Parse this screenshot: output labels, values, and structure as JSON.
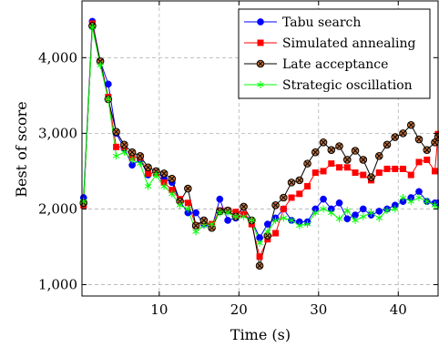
{
  "chart_data": {
    "type": "line",
    "xlabel": "Time (s)",
    "ylabel": "Best of score",
    "xlim": [
      0.3,
      45
    ],
    "ylim": [
      850,
      4750
    ],
    "xticks": [
      10,
      20,
      30,
      40
    ],
    "xtick_labels": [
      "10",
      "20",
      "30",
      "40"
    ],
    "yticks": [
      1000,
      2000,
      3000,
      4000
    ],
    "ytick_labels": [
      "1,000",
      "2,000",
      "3,000",
      "4,000"
    ],
    "grid": true,
    "legend_position": "top-right",
    "series": [
      {
        "name": "Tabu search",
        "color": "#0000ff",
        "marker": "circle",
        "x": [
          0.5,
          1.6,
          2.6,
          3.6,
          4.6,
          5.6,
          6.6,
          7.6,
          8.6,
          9.6,
          10.6,
          11.6,
          12.6,
          13.6,
          14.6,
          15.6,
          16.6,
          17.6,
          18.6,
          19.6,
          20.6,
          21.6,
          22.6,
          23.6,
          24.6,
          25.6,
          26.6,
          27.6,
          28.6,
          29.6,
          30.6,
          31.6,
          32.6,
          33.6,
          34.6,
          35.6,
          36.6,
          37.6,
          38.6,
          39.6,
          40.6,
          41.6,
          42.6,
          43.6,
          44.6,
          45
        ],
        "y": [
          2150,
          4480,
          3950,
          3650,
          3000,
          2800,
          2580,
          2650,
          2450,
          2500,
          2400,
          2350,
          2100,
          1950,
          1950,
          1800,
          1750,
          2130,
          1850,
          1880,
          1930,
          1850,
          1620,
          1800,
          1880,
          2000,
          1850,
          1830,
          1830,
          2000,
          2130,
          2000,
          2080,
          1870,
          1920,
          2000,
          1920,
          1970,
          2000,
          2050,
          2100,
          2150,
          2230,
          2100,
          2080,
          2080
        ]
      },
      {
        "name": "Simulated annealing",
        "color": "#ff0000",
        "marker": "square",
        "x": [
          0.5,
          1.6,
          2.6,
          3.6,
          4.6,
          5.6,
          6.6,
          7.6,
          8.6,
          9.6,
          10.6,
          11.6,
          12.6,
          13.6,
          14.6,
          15.6,
          16.6,
          17.6,
          18.6,
          19.6,
          20.6,
          21.6,
          22.6,
          23.6,
          24.6,
          25.6,
          26.6,
          27.6,
          28.6,
          29.6,
          30.6,
          31.6,
          32.6,
          33.6,
          34.6,
          35.6,
          36.6,
          37.6,
          38.6,
          39.6,
          40.6,
          41.6,
          42.6,
          43.6,
          44.6,
          45
        ],
        "y": [
          2050,
          4450,
          3950,
          3480,
          2820,
          2820,
          2680,
          2680,
          2470,
          2480,
          2350,
          2250,
          2130,
          2080,
          1780,
          1830,
          1800,
          1980,
          1980,
          1960,
          1930,
          1800,
          1370,
          1600,
          1680,
          2000,
          2150,
          2200,
          2300,
          2480,
          2500,
          2600,
          2550,
          2550,
          2480,
          2450,
          2380,
          2480,
          2530,
          2530,
          2530,
          2450,
          2620,
          2650,
          2500,
          2990
        ]
      },
      {
        "name": "Late acceptance",
        "color": "#000000",
        "fill": "#c87137",
        "marker": "otimes",
        "x": [
          0.5,
          1.6,
          2.6,
          3.6,
          4.6,
          5.6,
          6.6,
          7.6,
          8.6,
          9.6,
          10.6,
          11.6,
          12.6,
          13.6,
          14.6,
          15.6,
          16.6,
          17.6,
          18.6,
          19.6,
          20.6,
          21.6,
          22.6,
          23.6,
          24.6,
          25.6,
          26.6,
          27.6,
          28.6,
          29.6,
          30.6,
          31.6,
          32.6,
          33.6,
          34.6,
          35.6,
          36.6,
          37.6,
          38.6,
          39.6,
          40.6,
          41.6,
          42.6,
          43.6,
          44.6,
          45
        ],
        "y": [
          2080,
          4420,
          3950,
          3450,
          3020,
          2850,
          2750,
          2700,
          2550,
          2500,
          2470,
          2400,
          2100,
          2270,
          1780,
          1850,
          1750,
          1970,
          1980,
          1900,
          2030,
          1850,
          1250,
          1650,
          2050,
          2150,
          2350,
          2380,
          2600,
          2750,
          2880,
          2780,
          2830,
          2650,
          2770,
          2650,
          2420,
          2700,
          2850,
          2950,
          3000,
          3110,
          2920,
          2780,
          2880,
          2950
        ]
      },
      {
        "name": "Strategic oscillation",
        "color": "#00ff00",
        "marker": "star",
        "x": [
          0.5,
          1.6,
          2.6,
          3.6,
          4.6,
          5.6,
          6.6,
          7.6,
          8.6,
          9.6,
          10.6,
          11.6,
          12.6,
          13.6,
          14.6,
          15.6,
          16.6,
          17.6,
          18.6,
          19.6,
          20.6,
          21.6,
          22.6,
          23.6,
          24.6,
          25.6,
          26.6,
          27.6,
          28.6,
          29.6,
          30.6,
          31.6,
          32.6,
          33.6,
          34.6,
          35.6,
          36.6,
          37.6,
          38.6,
          39.6,
          40.6,
          41.6,
          42.6,
          43.6,
          44.6,
          45
        ],
        "y": [
          2100,
          4400,
          3900,
          3450,
          2700,
          2750,
          2650,
          2600,
          2300,
          2450,
          2300,
          2200,
          2050,
          2000,
          1700,
          1780,
          1800,
          1950,
          1950,
          1900,
          1900,
          1850,
          1550,
          1700,
          1850,
          1880,
          1850,
          1780,
          1800,
          1950,
          2000,
          1950,
          1870,
          1980,
          1850,
          1900,
          1950,
          1880,
          1980,
          2000,
          2150,
          2100,
          2150,
          2100,
          2050,
          2020
        ]
      }
    ]
  }
}
